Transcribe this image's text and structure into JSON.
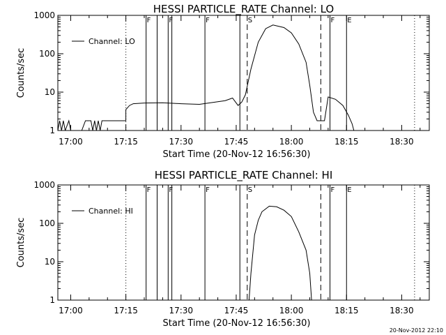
{
  "footer": {
    "timestamp": "20-Nov-2012 22:10"
  },
  "chart_data": [
    {
      "type": "line",
      "title": "HESSI PARTICLE_RATE Channel: LO",
      "xlabel": "Start Time (20-Nov-12 16:56:30)",
      "ylabel": "Counts/sec",
      "yscale": "log",
      "ylim": [
        1,
        1000
      ],
      "xlim": [
        "16:56:30",
        "18:37:30"
      ],
      "x_ticks": [
        "17:00",
        "17:15",
        "17:30",
        "17:45",
        "18:00",
        "18:15",
        "18:30"
      ],
      "y_ticks": [
        "1",
        "10",
        "100",
        "1000"
      ],
      "legend": {
        "position": "top-left",
        "entries": [
          "Channel: LO"
        ]
      },
      "series": [
        {
          "name": "Channel: LO",
          "points": [
            [
              "16:56:30",
              1
            ],
            [
              "16:57:00",
              1.8
            ],
            [
              "16:57:30",
              1
            ],
            [
              "16:58:00",
              1.8
            ],
            [
              "16:58:30",
              1
            ],
            [
              "16:59:30",
              1.8
            ],
            [
              "17:00:00",
              1
            ],
            [
              "17:03:00",
              1
            ],
            [
              "17:04:00",
              1.8
            ],
            [
              "17:05:30",
              1.8
            ],
            [
              "17:06:00",
              1
            ],
            [
              "17:06:30",
              1.8
            ],
            [
              "17:07:00",
              1
            ],
            [
              "17:07:30",
              1.8
            ],
            [
              "17:08:00",
              1
            ],
            [
              "17:08:30",
              1.8
            ],
            [
              "17:15:00",
              1.8
            ],
            [
              "17:15:00",
              3.5
            ],
            [
              "17:16:00",
              4.5
            ],
            [
              "17:17:00",
              5.0
            ],
            [
              "17:20:00",
              5.2
            ],
            [
              "17:25:00",
              5.3
            ],
            [
              "17:30:00",
              5.0
            ],
            [
              "17:35:00",
              4.8
            ],
            [
              "17:38:00",
              5.3
            ],
            [
              "17:42:00",
              6.0
            ],
            [
              "17:44:00",
              7.0
            ],
            [
              "17:45:30",
              4.5
            ],
            [
              "17:46:30",
              5.5
            ],
            [
              "17:47:30",
              8.5
            ],
            [
              "17:49:00",
              40
            ],
            [
              "17:51:00",
              200
            ],
            [
              "17:53:00",
              450
            ],
            [
              "17:55:00",
              560
            ],
            [
              "17:58:00",
              480
            ],
            [
              "18:00:00",
              350
            ],
            [
              "18:02:00",
              180
            ],
            [
              "18:04:00",
              60
            ],
            [
              "18:05:00",
              15
            ],
            [
              "18:06:00",
              3
            ],
            [
              "18:07:00",
              1.8
            ],
            [
              "18:09:00",
              1.8
            ],
            [
              "18:10:00",
              7.5
            ],
            [
              "18:12:00",
              6.5
            ],
            [
              "18:14:00",
              4.5
            ],
            [
              "18:15:30",
              2.5
            ],
            [
              "18:16:30",
              1.5
            ],
            [
              "18:17:00",
              1
            ]
          ]
        }
      ],
      "event_lines": [
        {
          "time": "17:15:00",
          "style": "dotted",
          "label": ""
        },
        {
          "time": "17:20:30",
          "style": "solid",
          "label": "F"
        },
        {
          "time": "17:23:30",
          "style": "solid",
          "label": ""
        },
        {
          "time": "17:26:30",
          "style": "solid",
          "label": "F"
        },
        {
          "time": "17:27:30",
          "style": "solid",
          "label": ""
        },
        {
          "time": "17:36:30",
          "style": "solid",
          "label": "F"
        },
        {
          "time": "17:46:00",
          "style": "solid",
          "label": ""
        },
        {
          "time": "17:48:00",
          "style": "dashed",
          "label": "S"
        },
        {
          "time": "18:08:00",
          "style": "dashed",
          "label": ""
        },
        {
          "time": "18:10:30",
          "style": "solid",
          "label": "F"
        },
        {
          "time": "18:15:00",
          "style": "solid",
          "label": "E"
        },
        {
          "time": "18:33:30",
          "style": "dotted",
          "label": ""
        }
      ]
    },
    {
      "type": "line",
      "title": "HESSI PARTICLE_RATE Channel: HI",
      "xlabel": "Start Time (20-Nov-12 16:56:30)",
      "ylabel": "Counts/sec",
      "yscale": "log",
      "ylim": [
        1,
        1000
      ],
      "xlim": [
        "16:56:30",
        "18:37:30"
      ],
      "x_ticks": [
        "17:00",
        "17:15",
        "17:30",
        "17:45",
        "18:00",
        "18:15",
        "18:30"
      ],
      "y_ticks": [
        "1",
        "10",
        "100",
        "1000"
      ],
      "legend": {
        "position": "top-left",
        "entries": [
          "Channel: HI"
        ]
      },
      "series": [
        {
          "name": "Channel: HI",
          "points": [
            [
              "17:48:30",
              1
            ],
            [
              "17:49:00",
              5
            ],
            [
              "17:50:00",
              50
            ],
            [
              "17:51:00",
              120
            ],
            [
              "17:52:00",
              200
            ],
            [
              "17:54:00",
              280
            ],
            [
              "17:56:00",
              270
            ],
            [
              "17:58:00",
              220
            ],
            [
              "18:00:00",
              150
            ],
            [
              "18:02:00",
              60
            ],
            [
              "18:04:00",
              20
            ],
            [
              "18:05:00",
              5
            ],
            [
              "18:05:30",
              1
            ]
          ]
        }
      ],
      "event_lines": [
        {
          "time": "17:15:00",
          "style": "dotted",
          "label": ""
        },
        {
          "time": "17:20:30",
          "style": "solid",
          "label": "F"
        },
        {
          "time": "17:23:30",
          "style": "solid",
          "label": ""
        },
        {
          "time": "17:26:30",
          "style": "solid",
          "label": "F"
        },
        {
          "time": "17:27:30",
          "style": "solid",
          "label": ""
        },
        {
          "time": "17:36:30",
          "style": "solid",
          "label": "F"
        },
        {
          "time": "17:46:00",
          "style": "solid",
          "label": ""
        },
        {
          "time": "17:48:00",
          "style": "dashed",
          "label": "S"
        },
        {
          "time": "18:08:00",
          "style": "dashed",
          "label": ""
        },
        {
          "time": "18:10:30",
          "style": "solid",
          "label": "F"
        },
        {
          "time": "18:15:00",
          "style": "solid",
          "label": "E"
        },
        {
          "time": "18:33:30",
          "style": "dotted",
          "label": ""
        }
      ]
    }
  ]
}
